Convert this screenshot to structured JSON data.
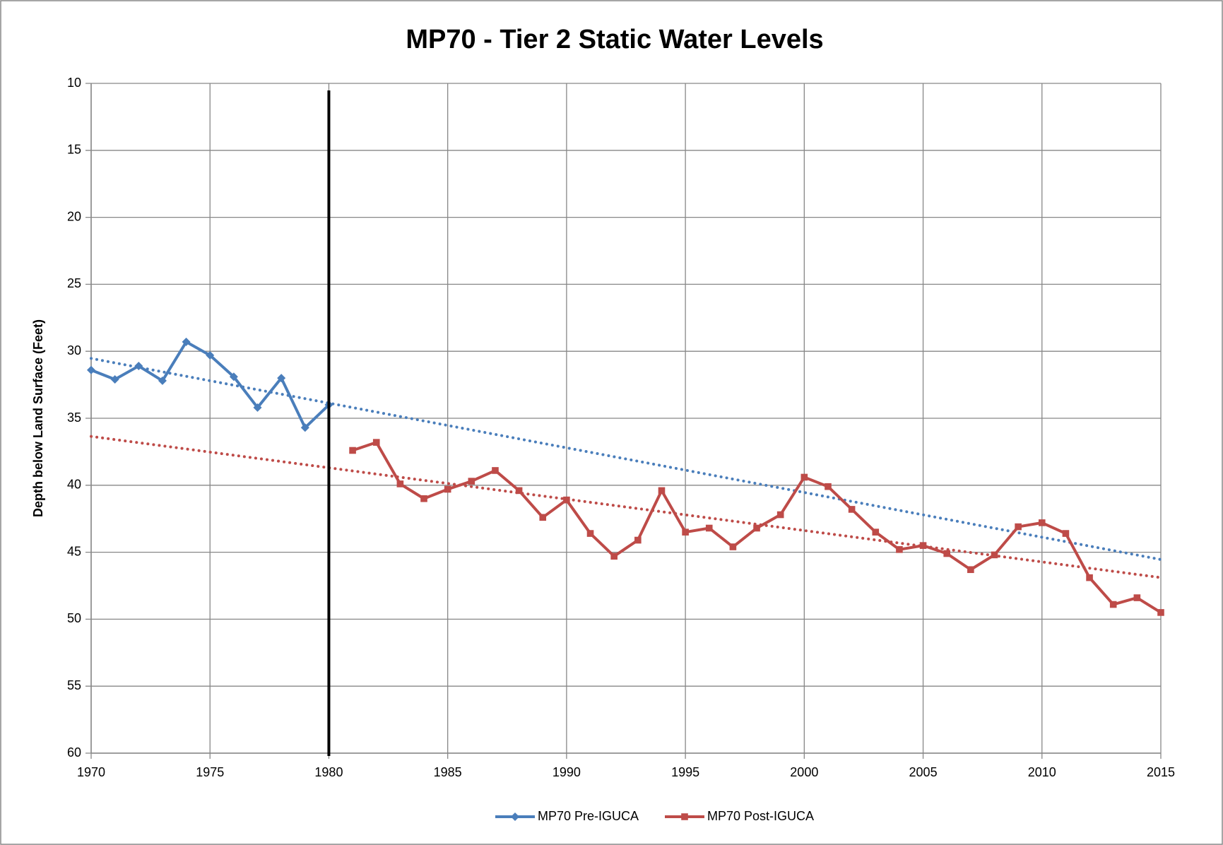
{
  "chart_data": {
    "type": "line",
    "title": "MP70 - Tier 2 Static Water Levels",
    "y_label": "Depth below Land Surface (Feet)",
    "xlim": [
      1970,
      2015
    ],
    "xticks": [
      1970,
      1975,
      1980,
      1985,
      1990,
      1995,
      2000,
      2005,
      2010,
      2015
    ],
    "ylim": [
      10,
      60
    ],
    "yticks": [
      10,
      15,
      20,
      25,
      30,
      35,
      40,
      45,
      50,
      55,
      60
    ],
    "y_inverted": true,
    "grid": true,
    "legend": "bottom",
    "trendline": "linear",
    "reference_line_x": 1980,
    "series": [
      {
        "name": "MP70 Pre-IGUCA",
        "color": "#4a7ebb",
        "marker": "diamond",
        "x": [
          1970,
          1971,
          1972,
          1973,
          1974,
          1975,
          1976,
          1977,
          1978,
          1979,
          1980
        ],
        "values": [
          31.4,
          32.1,
          31.1,
          32.2,
          29.3,
          30.3,
          31.9,
          34.2,
          32.0,
          35.7,
          34.0
        ]
      },
      {
        "name": "MP70 Post-IGUCA",
        "color": "#be4b48",
        "marker": "square",
        "x": [
          1981,
          1982,
          1983,
          1984,
          1985,
          1986,
          1987,
          1988,
          1989,
          1990,
          1991,
          1992,
          1993,
          1994,
          1995,
          1996,
          1997,
          1998,
          1999,
          2000,
          2001,
          2002,
          2003,
          2004,
          2005,
          2006,
          2007,
          2008,
          2009,
          2010,
          2011,
          2012,
          2013,
          2014,
          2015
        ],
        "values": [
          37.4,
          36.8,
          39.9,
          41.0,
          40.3,
          39.7,
          38.9,
          40.4,
          42.4,
          41.1,
          43.6,
          45.3,
          44.1,
          40.4,
          43.5,
          43.2,
          44.6,
          43.2,
          42.2,
          39.4,
          40.1,
          41.8,
          43.5,
          44.8,
          44.5,
          45.1,
          46.3,
          45.2,
          43.1,
          42.8,
          43.6,
          46.9,
          48.9,
          48.4,
          49.5
        ]
      }
    ]
  }
}
